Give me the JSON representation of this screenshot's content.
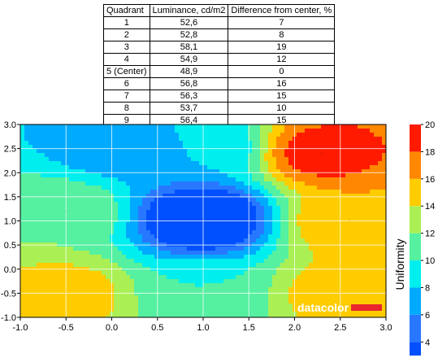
{
  "table": {
    "headers": [
      "Quadrant",
      "Luminance, cd/m2",
      "Difference from center, %"
    ],
    "rows": [
      [
        "1",
        "52,6",
        "7"
      ],
      [
        "2",
        "52,8",
        "8"
      ],
      [
        "3",
        "58,1",
        "19"
      ],
      [
        "4",
        "54,9",
        "12"
      ],
      [
        "5 (Center)",
        "48,9",
        "0"
      ],
      [
        "6",
        "56,8",
        "16"
      ],
      [
        "7",
        "56,3",
        "15"
      ],
      [
        "8",
        "53,7",
        "10"
      ],
      [
        "9",
        "56,4",
        "15"
      ]
    ]
  },
  "chart_data": {
    "type": "heatmap",
    "title": "",
    "xlabel": "",
    "ylabel": "",
    "xlim": [
      -1.0,
      3.0
    ],
    "ylim": [
      -1.0,
      3.0
    ],
    "x_ticks": [
      "-1.0",
      "-0.5",
      "0.0",
      "0.5",
      "1.0",
      "1.5",
      "2.0",
      "2.5",
      "3.0"
    ],
    "y_ticks": [
      "3.0",
      "2.5",
      "2.0",
      "1.5",
      "1.0",
      "0.5",
      "0.0",
      "-0.5",
      "-1.0"
    ],
    "grid": true,
    "quadrant_points": [
      {
        "quadrant": "1",
        "x": 0.0,
        "y": 2.5,
        "value": 7
      },
      {
        "quadrant": "2",
        "x": 1.0,
        "y": 2.5,
        "value": 8
      },
      {
        "quadrant": "3",
        "x": 2.3,
        "y": 2.4,
        "value": 19
      },
      {
        "quadrant": "4",
        "x": -0.5,
        "y": 1.2,
        "value": 12
      },
      {
        "quadrant": "5 (Center)",
        "x": 1.0,
        "y": 1.05,
        "value": 0
      },
      {
        "quadrant": "6",
        "x": 2.6,
        "y": 1.0,
        "value": 16
      },
      {
        "quadrant": "7",
        "x": -0.5,
        "y": -0.5,
        "value": 15
      },
      {
        "quadrant": "8",
        "x": 1.0,
        "y": -0.5,
        "value": 10
      },
      {
        "quadrant": "9",
        "x": 2.5,
        "y": -0.5,
        "value": 15
      }
    ],
    "colorbar": {
      "label": "Uniformity",
      "ticks": [
        "20",
        "18",
        "16",
        "14",
        "12",
        "10",
        "8",
        "6",
        "4"
      ],
      "range": [
        3,
        20
      ],
      "bands": [
        {
          "from": 3,
          "to": 4,
          "color": "#0050ff"
        },
        {
          "from": 4,
          "to": 6,
          "color": "#2878ff"
        },
        {
          "from": 6,
          "to": 8,
          "color": "#00aaff"
        },
        {
          "from": 8,
          "to": 10,
          "color": "#00eeee"
        },
        {
          "from": 10,
          "to": 12,
          "color": "#55f0a0"
        },
        {
          "from": 12,
          "to": 14,
          "color": "#aaf055"
        },
        {
          "from": 14,
          "to": 16,
          "color": "#ffcc00"
        },
        {
          "from": 16,
          "to": 18,
          "color": "#ff8800"
        },
        {
          "from": 18,
          "to": 20,
          "color": "#ff1a00"
        }
      ]
    }
  },
  "watermark": {
    "text": "datacolor",
    "bar_color": "#e8262b"
  }
}
